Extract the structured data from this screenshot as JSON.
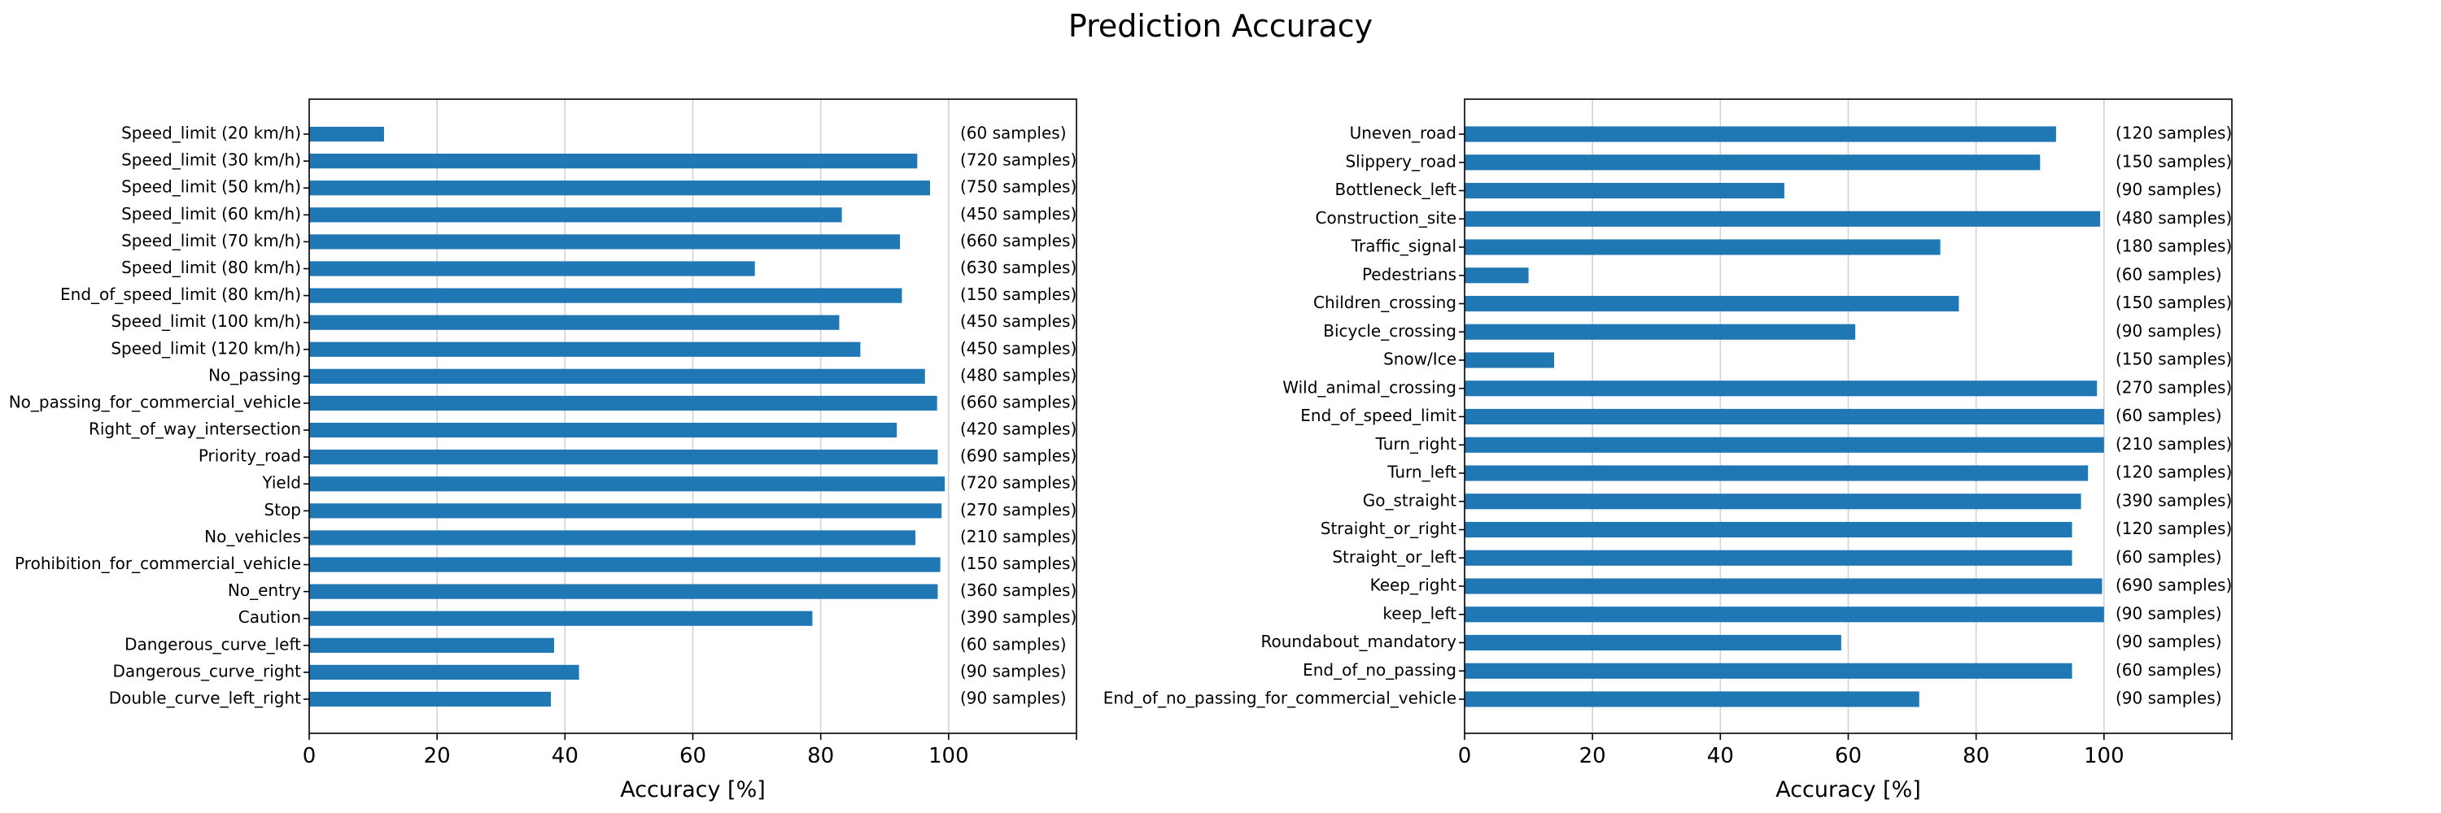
{
  "figure_title": "Prediction Accuracy",
  "chart_data": [
    {
      "type": "bar",
      "orientation": "horizontal",
      "xlabel": "Accuracy [%]",
      "xlim": [
        0,
        120
      ],
      "xticks": [
        "0",
        "20",
        "40",
        "60",
        "80",
        "100"
      ],
      "grid": "vertical",
      "color": "#1f77b4",
      "categories": [
        "Speed_limit (20 km/h)",
        "Speed_limit (30 km/h)",
        "Speed_limit (50 km/h)",
        "Speed_limit (60 km/h)",
        "Speed_limit (70 km/h)",
        "Speed_limit (80 km/h)",
        "End_of_speed_limit (80 km/h)",
        "Speed_limit (100 km/h)",
        "Speed_limit (120 km/h)",
        "No_passing",
        "No_passing_for_commercial_vehicle",
        "Right_of_way_intersection",
        "Priority_road",
        "Yield",
        "Stop",
        "No_vehicles",
        "Prohibition_for_commercial_vehicle",
        "No_entry",
        "Caution",
        "Dangerous_curve_left",
        "Dangerous_curve_right",
        "Double_curve_left_right"
      ],
      "values": [
        11.7,
        95.1,
        97.1,
        83.3,
        92.4,
        69.7,
        92.7,
        82.9,
        86.2,
        96.3,
        98.2,
        91.9,
        98.3,
        99.4,
        98.9,
        94.8,
        98.7,
        98.3,
        78.7,
        38.3,
        42.2,
        37.8
      ],
      "annotations": [
        "(60 samples)",
        "(720 samples)",
        "(750 samples)",
        "(450 samples)",
        "(660 samples)",
        "(630 samples)",
        "(150 samples)",
        "(450 samples)",
        "(450 samples)",
        "(480 samples)",
        "(660 samples)",
        "(420 samples)",
        "(690 samples)",
        "(720 samples)",
        "(270 samples)",
        "(210 samples)",
        "(150 samples)",
        "(360 samples)",
        "(390 samples)",
        "(60 samples)",
        "(90 samples)",
        "(90 samples)"
      ]
    },
    {
      "type": "bar",
      "orientation": "horizontal",
      "xlabel": "Accuracy [%]",
      "xlim": [
        0,
        120
      ],
      "xticks": [
        "0",
        "20",
        "40",
        "60",
        "80",
        "100"
      ],
      "grid": "vertical",
      "color": "#1f77b4",
      "categories": [
        "Uneven_road",
        "Slippery_road",
        "Bottleneck_left",
        "Construction_site",
        "Traffic_signal",
        "Pedestrians",
        "Children_crossing",
        "Bicycle_crossing",
        "Snow/Ice",
        "Wild_animal_crossing",
        "End_of_speed_limit",
        "Turn_right",
        "Turn_left",
        "Go_straight",
        "Straight_or_right",
        "Straight_or_left",
        "Keep_right",
        "keep_left",
        "Roundabout_mandatory",
        "End_of_no_passing",
        "End_of_no_passing_for_commercial_vehicle"
      ],
      "values": [
        92.5,
        90.0,
        50.0,
        99.4,
        74.4,
        10.0,
        77.3,
        61.1,
        14.0,
        98.9,
        100.0,
        100.0,
        97.5,
        96.4,
        95.0,
        95.0,
        99.7,
        100.0,
        58.9,
        95.0,
        71.1
      ],
      "annotations": [
        "(120 samples)",
        "(150 samples)",
        "(90 samples)",
        "(480 samples)",
        "(180 samples)",
        "(60 samples)",
        "(150 samples)",
        "(90 samples)",
        "(150 samples)",
        "(270 samples)",
        "(60 samples)",
        "(210 samples)",
        "(120 samples)",
        "(390 samples)",
        "(120 samples)",
        "(60 samples)",
        "(690 samples)",
        "(90 samples)",
        "(90 samples)",
        "(60 samples)",
        "(90 samples)"
      ]
    }
  ]
}
